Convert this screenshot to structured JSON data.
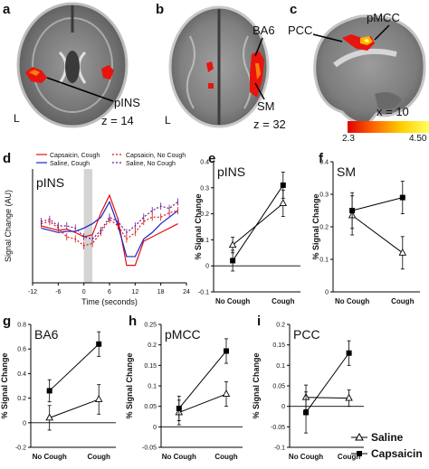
{
  "panels": {
    "a": {
      "letter": "a",
      "region": "pINS",
      "side": "L",
      "z": "z = 14"
    },
    "b": {
      "letter": "b",
      "region1": "BA6",
      "region2": "SM",
      "side": "L",
      "z": "z = 32"
    },
    "c": {
      "letter": "c",
      "region1": "PCC",
      "region2": "pMCC",
      "x": "x = 10",
      "colorbar": {
        "min": "2.3",
        "max": "4.50",
        "colors": [
          "#e00000",
          "#ff6a00",
          "#ffd000",
          "#ffff60"
        ]
      }
    },
    "d": {
      "letter": "d",
      "title": "pINS",
      "ylabel": "Signal Change (AU)",
      "xlabel": "Time (seconds)"
    },
    "e": {
      "letter": "e",
      "title": "pINS",
      "ylabel": "% Signal Change"
    },
    "f": {
      "letter": "f",
      "title": "SM",
      "ylabel": "% Signal Change"
    },
    "g": {
      "letter": "g",
      "title": "BA6",
      "ylabel": "% Signal Change"
    },
    "h": {
      "letter": "h",
      "title": "pMCC",
      "ylabel": "% Signal Change"
    },
    "i": {
      "letter": "i",
      "title": "PCC",
      "ylabel": "% Signal Change"
    }
  },
  "legend_bottom": {
    "saline": "Saline",
    "capsaicin": "Capsaicin"
  },
  "chart_data": [
    {
      "id": "d",
      "type": "line",
      "title": "pINS",
      "xlabel": "Time (seconds)",
      "ylabel": "Signal Change (AU)",
      "xlim": [
        -12,
        24
      ],
      "xticks": [
        "-12",
        "-6",
        "0",
        "6",
        "12",
        "18",
        "24"
      ],
      "highlight": [
        0,
        2
      ],
      "x": [
        -10,
        -8,
        -6,
        -4,
        -2,
        0,
        2,
        4,
        6,
        8,
        10,
        12,
        14,
        16,
        18,
        20,
        22
      ],
      "series": [
        {
          "name": "Capsaicin, Cough",
          "color": "#e01010",
          "style": "solid",
          "values": [
            0.2,
            0.1,
            0.0,
            0.05,
            -0.1,
            -0.3,
            -0.2,
            0.8,
            1.6,
            0.5,
            -1.6,
            -1.6,
            -0.5,
            -0.3,
            -0.1,
            0.1,
            0.3
          ]
        },
        {
          "name": "Saline, Cough",
          "color": "#2020c0",
          "style": "solid",
          "values": [
            0.1,
            0.0,
            -0.1,
            -0.05,
            -0.05,
            0.1,
            0.3,
            0.6,
            1.3,
            0.2,
            -1.2,
            -1.2,
            -0.4,
            -0.1,
            0.3,
            0.6,
            0.9
          ]
        },
        {
          "name": "Capsaicin, No Cough",
          "color": "#e01010",
          "style": "dashed",
          "values": [
            0.3,
            0.4,
            0.1,
            -0.3,
            -0.4,
            -0.7,
            -0.6,
            -0.1,
            0.5,
            0.2,
            -0.4,
            -0.1,
            0.4,
            0.6,
            0.6,
            0.8,
            0.9
          ]
        },
        {
          "name": "Saline, No Cough",
          "color": "#6a1a8a",
          "style": "dashed",
          "values": [
            0.4,
            0.5,
            0.2,
            0.2,
            0.1,
            -0.3,
            -0.4,
            0.0,
            0.6,
            0.4,
            -0.1,
            0.2,
            0.6,
            0.9,
            1.1,
            1.0,
            1.3
          ]
        }
      ]
    },
    {
      "id": "e",
      "type": "line",
      "title": "pINS",
      "ylabel": "% Signal Change",
      "categories": [
        "No Cough",
        "Cough"
      ],
      "ylim": [
        -0.1,
        0.4
      ],
      "yticks": [
        "-0.1",
        "0",
        "0.1",
        "0.2",
        "0.3",
        "0.4"
      ],
      "series": [
        {
          "name": "Saline",
          "marker": "triangle",
          "values": [
            0.08,
            0.24
          ],
          "err": [
            0.03,
            0.05
          ]
        },
        {
          "name": "Capsaicin",
          "marker": "square",
          "values": [
            0.02,
            0.31
          ],
          "err": [
            0.04,
            0.05
          ]
        }
      ]
    },
    {
      "id": "f",
      "type": "line",
      "title": "SM",
      "ylabel": "% Signal Change",
      "categories": [
        "No Cough",
        "Cough"
      ],
      "ylim": [
        0,
        0.4
      ],
      "yticks": [
        "0",
        "0.1",
        "0.2",
        "0.3",
        "0.4"
      ],
      "series": [
        {
          "name": "Saline",
          "marker": "triangle",
          "values": [
            0.235,
            0.12
          ],
          "err": [
            0.06,
            0.05
          ]
        },
        {
          "name": "Capsaicin",
          "marker": "square",
          "values": [
            0.25,
            0.29
          ],
          "err": [
            0.055,
            0.05
          ]
        }
      ]
    },
    {
      "id": "g",
      "type": "line",
      "title": "BA6",
      "ylabel": "% Signal Change",
      "categories": [
        "No Cough",
        "Cough"
      ],
      "ylim": [
        -0.2,
        0.8
      ],
      "yticks": [
        "-0.2",
        "0",
        "0.2",
        "0.4",
        "0.6",
        "0.8"
      ],
      "series": [
        {
          "name": "Saline",
          "marker": "triangle",
          "values": [
            0.04,
            0.19
          ],
          "err": [
            0.1,
            0.12
          ]
        },
        {
          "name": "Capsaicin",
          "marker": "square",
          "values": [
            0.26,
            0.64
          ],
          "err": [
            0.09,
            0.1
          ]
        }
      ]
    },
    {
      "id": "h",
      "type": "line",
      "title": "pMCC",
      "ylabel": "% Signal Change",
      "categories": [
        "No Cough",
        "Cough"
      ],
      "ylim": [
        -0.05,
        0.25
      ],
      "yticks": [
        "-0.05",
        "0",
        "0.05",
        "0.1",
        "0.15",
        "0.2",
        "0.25"
      ],
      "series": [
        {
          "name": "Saline",
          "marker": "triangle",
          "values": [
            0.035,
            0.08
          ],
          "err": [
            0.03,
            0.03
          ]
        },
        {
          "name": "Capsaicin",
          "marker": "square",
          "values": [
            0.045,
            0.185
          ],
          "err": [
            0.03,
            0.03
          ]
        }
      ]
    },
    {
      "id": "i",
      "type": "line",
      "title": "PCC",
      "ylabel": "% Signal Change",
      "categories": [
        "No Cough",
        "Cough"
      ],
      "ylim": [
        -0.1,
        0.2
      ],
      "yticks": [
        "-0.1",
        "-0.05",
        "0",
        "0.05",
        "0.1",
        "0.15",
        "0.2"
      ],
      "series": [
        {
          "name": "Saline",
          "marker": "triangle",
          "values": [
            0.022,
            0.02
          ],
          "err": [
            0.03,
            0.02
          ]
        },
        {
          "name": "Capsaicin",
          "marker": "square",
          "values": [
            -0.015,
            0.13
          ],
          "err": [
            0.05,
            0.03
          ]
        }
      ]
    }
  ]
}
